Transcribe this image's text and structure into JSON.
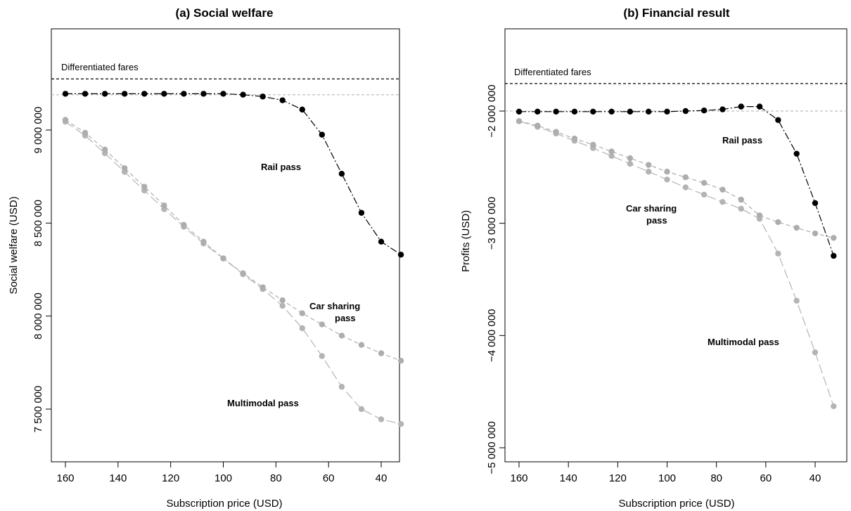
{
  "colors": {
    "rail": "#000000",
    "car_sharing": "#adadad",
    "multimodal": "#b4b4b4",
    "reference_black": "#000000",
    "reference_gray": "#bdbdbd"
  },
  "chart_data": [
    {
      "type": "line",
      "title": "(a) Social welfare",
      "xlabel": "Subscription price (USD)",
      "ylabel": "Social welfare (USD)",
      "x_reversed": true,
      "xlim": [
        165,
        30
      ],
      "ylim": [
        7250000,
        9500000
      ],
      "xticks": [
        160,
        140,
        120,
        100,
        80,
        60,
        40
      ],
      "yticks": [
        7500000,
        8000000,
        8500000,
        9000000
      ],
      "ytick_labels": [
        "7 500 000",
        "8 000 000",
        "8 500 000",
        "9 000 000"
      ],
      "grid": false,
      "x": [
        160,
        152.5,
        145,
        137.5,
        130,
        122.5,
        115,
        107.5,
        100,
        92.5,
        85,
        77.5,
        70,
        62.5,
        55,
        47.5,
        40,
        32.5
      ],
      "series": [
        {
          "name": "Rail pass",
          "values": [
            9195000,
            9195000,
            9195000,
            9195000,
            9195000,
            9195000,
            9195000,
            9195000,
            9195000,
            9190000,
            9180000,
            9160000,
            9110000,
            8975000,
            8765000,
            8555000,
            8400000,
            8330000
          ]
        },
        {
          "name": "Car sharing pass",
          "values": [
            9055000,
            8985000,
            8895000,
            8795000,
            8695000,
            8595000,
            8490000,
            8400000,
            8310000,
            8230000,
            8155000,
            8085000,
            8015000,
            7955000,
            7895000,
            7845000,
            7800000,
            7760000
          ]
        },
        {
          "name": "Multimodal pass",
          "values": [
            9045000,
            8970000,
            8875000,
            8775000,
            8675000,
            8575000,
            8480000,
            8390000,
            8310000,
            8225000,
            8145000,
            8055000,
            7935000,
            7785000,
            7620000,
            7500000,
            7445000,
            7420000
          ]
        }
      ],
      "reference_lines": [
        {
          "label": "Differentiated fares",
          "value": 9275000,
          "style": "dashed-black"
        },
        {
          "label": "",
          "value": 9190000,
          "style": "dashed-gray"
        }
      ],
      "annotations": [
        "Rail pass",
        "Car sharing",
        "pass",
        "Multimodal pass"
      ]
    },
    {
      "type": "line",
      "title": "(b) Financial result",
      "xlabel": "Subscription price (USD)",
      "ylabel": "Profits (USD)",
      "x_reversed": true,
      "xlim": [
        165,
        30
      ],
      "ylim": [
        -5150000,
        -1400000
      ],
      "xticks": [
        160,
        140,
        120,
        100,
        80,
        60,
        40
      ],
      "yticks": [
        -5000000,
        -4000000,
        -3000000,
        -2000000
      ],
      "ytick_labels": [
        "−5 000 000",
        "−4 000 000",
        "−3 000 000",
        "−2 000 000"
      ],
      "grid": false,
      "x": [
        160,
        152.5,
        145,
        137.5,
        130,
        122.5,
        115,
        107.5,
        100,
        92.5,
        85,
        77.5,
        70,
        62.5,
        55,
        47.5,
        40,
        32.5
      ],
      "series": [
        {
          "name": "Rail pass",
          "values": [
            -2005000,
            -2005000,
            -2005000,
            -2005000,
            -2005000,
            -2005000,
            -2005000,
            -2005000,
            -2005000,
            -2000000,
            -1995000,
            -1985000,
            -1960000,
            -1960000,
            -2080000,
            -2380000,
            -2820000,
            -3290000
          ]
        },
        {
          "name": "Car sharing pass",
          "values": [
            -2090000,
            -2130000,
            -2185000,
            -2245000,
            -2300000,
            -2360000,
            -2420000,
            -2480000,
            -2540000,
            -2590000,
            -2640000,
            -2700000,
            -2790000,
            -2930000,
            -2990000,
            -3040000,
            -3090000,
            -3130000
          ]
        },
        {
          "name": "Multimodal pass",
          "values": [
            -2090000,
            -2140000,
            -2200000,
            -2265000,
            -2330000,
            -2400000,
            -2470000,
            -2540000,
            -2610000,
            -2680000,
            -2745000,
            -2810000,
            -2870000,
            -2960000,
            -3270000,
            -3690000,
            -4150000,
            -4630000
          ]
        }
      ],
      "reference_lines": [
        {
          "label": "Differentiated fares",
          "value": -1755000,
          "style": "dashed-black"
        },
        {
          "label": "",
          "value": -2000000,
          "style": "dashed-gray"
        }
      ],
      "annotations": [
        "Rail pass",
        "Car sharing",
        "pass",
        "Multimodal pass"
      ]
    }
  ]
}
